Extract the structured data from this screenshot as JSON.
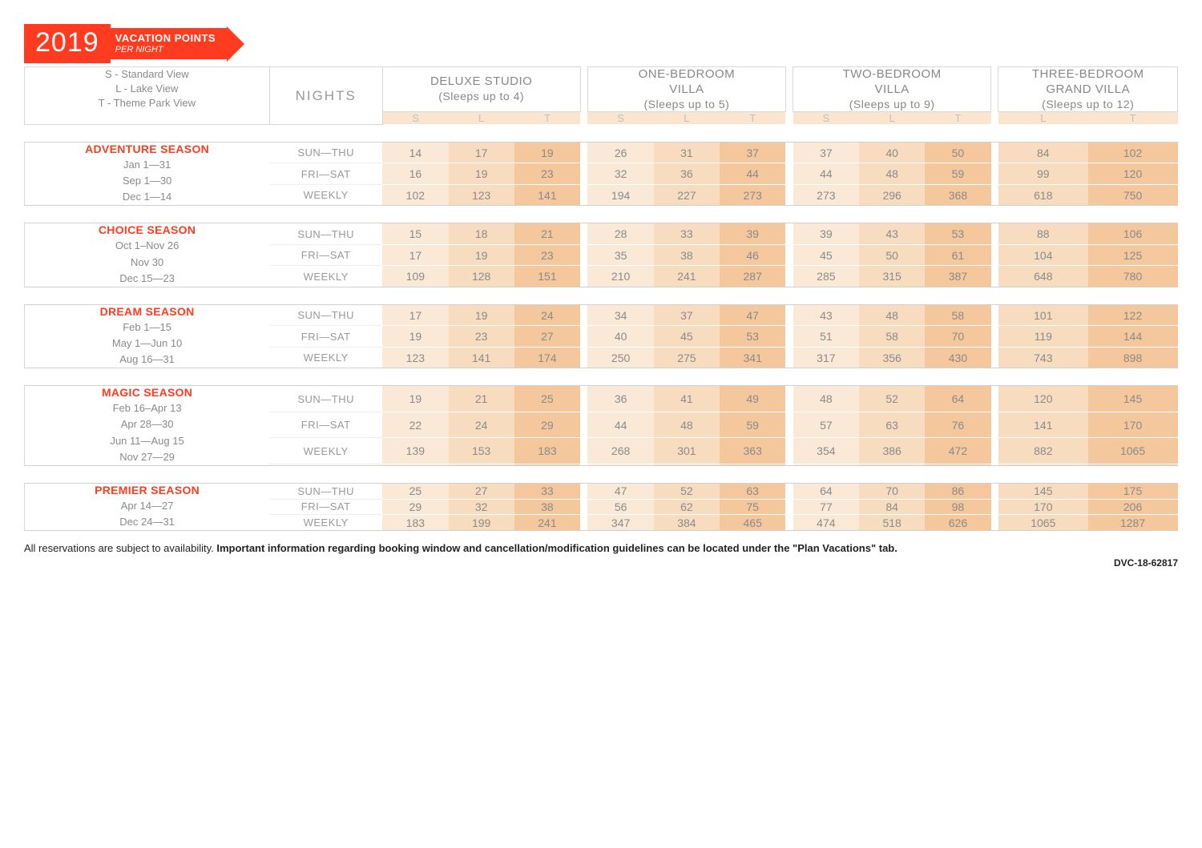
{
  "banner": {
    "year": "2019",
    "line1": "VACATION POINTS",
    "line2": "PER NIGHT"
  },
  "legend": {
    "s": "S - Standard View",
    "l": "L - Lake View",
    "t": "T - Theme Park View"
  },
  "headers": {
    "nights": "NIGHTS",
    "rooms": [
      {
        "title": "DELUXE STUDIO",
        "sub": "(Sleeps up to 4)",
        "cols": [
          "S",
          "L",
          "T"
        ]
      },
      {
        "title": "ONE-BEDROOM VILLA",
        "title2": "",
        "sub": "(Sleeps up to 5)",
        "cols": [
          "S",
          "L",
          "T"
        ],
        "multiline": [
          "ONE-BEDROOM",
          "VILLA"
        ]
      },
      {
        "title": "TWO-BEDROOM VILLA",
        "sub": "(Sleeps up to 9)",
        "cols": [
          "S",
          "L",
          "T"
        ],
        "multiline": [
          "TWO-BEDROOM",
          "VILLA"
        ]
      },
      {
        "title": "THREE-BEDROOM GRAND VILLA",
        "sub": "(Sleeps up to 12)",
        "cols": [
          "L",
          "T"
        ],
        "multiline": [
          "THREE-BEDROOM",
          "GRAND VILLA"
        ]
      }
    ]
  },
  "night_labels": [
    "SUN—THU",
    "FRI—SAT",
    "WEEKLY"
  ],
  "seasons": [
    {
      "name": "ADVENTURE SEASON",
      "dates": [
        "Jan 1—31",
        "Sep 1—30",
        "Dec 1—14"
      ],
      "rows": [
        [
          14,
          17,
          19,
          26,
          31,
          37,
          37,
          40,
          50,
          84,
          102
        ],
        [
          16,
          19,
          23,
          32,
          36,
          44,
          44,
          48,
          59,
          99,
          120
        ],
        [
          102,
          123,
          141,
          194,
          227,
          273,
          273,
          296,
          368,
          618,
          750
        ]
      ]
    },
    {
      "name": "CHOICE SEASON",
      "dates": [
        "Oct 1–Nov 26",
        "Nov 30",
        "Dec 15—23"
      ],
      "rows": [
        [
          15,
          18,
          21,
          28,
          33,
          39,
          39,
          43,
          53,
          88,
          106
        ],
        [
          17,
          19,
          23,
          35,
          38,
          46,
          45,
          50,
          61,
          104,
          125
        ],
        [
          109,
          128,
          151,
          210,
          241,
          287,
          285,
          315,
          387,
          648,
          780
        ]
      ]
    },
    {
      "name": "DREAM SEASON",
      "dates": [
        "Feb 1—15",
        "May 1—Jun 10",
        "Aug 16—31"
      ],
      "rows": [
        [
          17,
          19,
          24,
          34,
          37,
          47,
          43,
          48,
          58,
          101,
          122
        ],
        [
          19,
          23,
          27,
          40,
          45,
          53,
          51,
          58,
          70,
          119,
          144
        ],
        [
          123,
          141,
          174,
          250,
          275,
          341,
          317,
          356,
          430,
          743,
          898
        ]
      ]
    },
    {
      "name": "MAGIC SEASON",
      "dates": [
        "Feb 16–Apr 13",
        "Apr 28—30",
        "Jun 11—Aug 15",
        "Nov 27—29"
      ],
      "rows": [
        [
          19,
          21,
          25,
          36,
          41,
          49,
          48,
          52,
          64,
          120,
          145
        ],
        [
          22,
          24,
          29,
          44,
          48,
          59,
          57,
          63,
          76,
          141,
          170
        ],
        [
          139,
          153,
          183,
          268,
          301,
          363,
          354,
          386,
          472,
          882,
          1065
        ]
      ]
    },
    {
      "name": "PREMIER SEASON",
      "dates": [
        "Apr 14—27",
        "Dec 24—31"
      ],
      "rows": [
        [
          25,
          27,
          33,
          47,
          52,
          63,
          64,
          70,
          86,
          145,
          175
        ],
        [
          29,
          32,
          38,
          56,
          62,
          75,
          77,
          84,
          98,
          170,
          206
        ],
        [
          183,
          199,
          241,
          347,
          384,
          465,
          474,
          518,
          626,
          1065,
          1287
        ]
      ]
    }
  ],
  "shading": [
    0,
    1,
    2,
    0,
    1,
    2,
    0,
    1,
    2,
    1,
    2
  ],
  "footer": {
    "plain": "All reservations are subject to availability. ",
    "bold": "Important information regarding booking window and cancellation/modification guidelines can be located under the \"Plan Vacations\" tab.",
    "doc_id": "DVC-18-62817"
  }
}
